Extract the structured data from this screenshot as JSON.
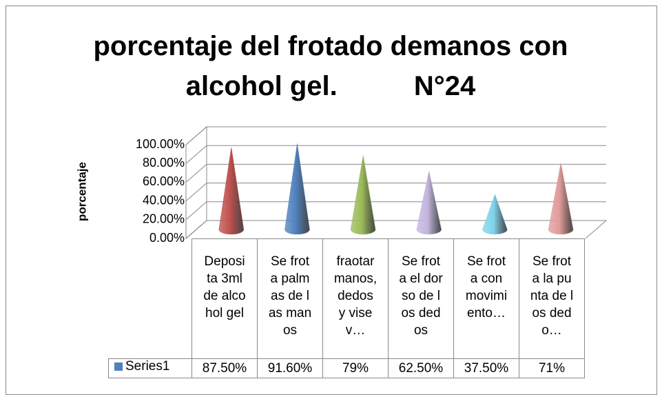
{
  "chart_data": {
    "type": "cone3d",
    "title": "porcentaje del frotado demanos con alcohol gel.          N°24",
    "y_label": "porcentaje",
    "categories": [
      "Deposita 3ml de alcohol gel",
      "Se frota palmas de las manos",
      "fraotar manos, dedos y visev…",
      "Se frota el dorso de los dedos",
      "Se frota con movimiento…",
      "Se frota la punta de los dedo…"
    ],
    "series": [
      {
        "name": "Series1",
        "color": "#4f81bd",
        "colors": [
          "#c0504d",
          "#4f81bd",
          "#9bbb59",
          "#c3b5dc",
          "#7fd3ea",
          "#e09b99"
        ],
        "values": [
          87.5,
          91.6,
          79,
          62.5,
          37.5,
          71
        ],
        "value_labels": [
          "87.50%",
          "91.60%",
          "79%",
          "62.50%",
          "37.50%",
          "71%"
        ]
      }
    ],
    "ylim": [
      0,
      100
    ],
    "yticks": [
      {
        "value": 0,
        "label": "0.00%"
      },
      {
        "value": 20,
        "label": "20.00%"
      },
      {
        "value": 40,
        "label": "40.00%"
      },
      {
        "value": 60,
        "label": "60.00%"
      },
      {
        "value": 80,
        "label": "80.00%"
      },
      {
        "value": 100,
        "label": "100.00%"
      }
    ],
    "grid": true,
    "data_table": true
  }
}
